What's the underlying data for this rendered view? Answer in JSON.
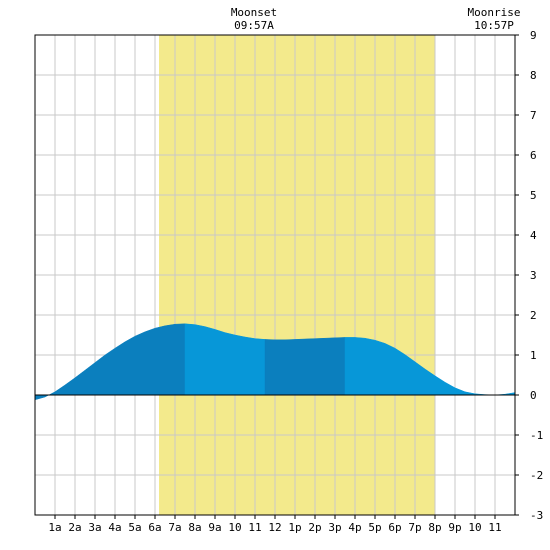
{
  "chart_data": {
    "type": "area",
    "title": "",
    "xlabel": "",
    "ylabel": "",
    "xlim": [
      0,
      24
    ],
    "ylim": [
      -3,
      9
    ],
    "y_ticks": [
      -3,
      -2,
      -1,
      0,
      1,
      2,
      3,
      4,
      5,
      6,
      7,
      8,
      9
    ],
    "x_ticks": [
      {
        "x": 1,
        "label": "1a"
      },
      {
        "x": 2,
        "label": "2a"
      },
      {
        "x": 3,
        "label": "3a"
      },
      {
        "x": 4,
        "label": "4a"
      },
      {
        "x": 5,
        "label": "5a"
      },
      {
        "x": 6,
        "label": "6a"
      },
      {
        "x": 7,
        "label": "7a"
      },
      {
        "x": 8,
        "label": "8a"
      },
      {
        "x": 9,
        "label": "9a"
      },
      {
        "x": 10,
        "label": "10"
      },
      {
        "x": 11,
        "label": "11"
      },
      {
        "x": 12,
        "label": "12"
      },
      {
        "x": 13,
        "label": "1p"
      },
      {
        "x": 14,
        "label": "2p"
      },
      {
        "x": 15,
        "label": "3p"
      },
      {
        "x": 16,
        "label": "4p"
      },
      {
        "x": 17,
        "label": "5p"
      },
      {
        "x": 18,
        "label": "6p"
      },
      {
        "x": 19,
        "label": "7p"
      },
      {
        "x": 20,
        "label": "8p"
      },
      {
        "x": 21,
        "label": "9p"
      },
      {
        "x": 22,
        "label": "10"
      },
      {
        "x": 23,
        "label": "11"
      }
    ],
    "grid": true,
    "daylight": {
      "start": 6.2,
      "end": 20.0
    },
    "annotations": [
      {
        "x": 10.95,
        "line1": "Moonset",
        "line2": "09:57A"
      },
      {
        "x": 22.95,
        "line1": "Moonrise",
        "line2": "10:57P"
      }
    ],
    "series": [
      {
        "x": [
          0,
          0.5,
          1,
          1.5,
          2,
          2.5,
          3,
          3.5,
          4,
          4.5,
          5,
          5.5,
          6,
          6.5,
          7,
          7.5,
          8,
          8.5,
          9,
          9.5,
          10,
          10.5,
          11,
          11.5,
          12,
          12.5,
          13,
          13.5,
          14,
          14.5,
          15,
          15.5,
          16,
          16.5,
          17,
          17.5,
          18,
          18.5,
          19,
          19.5,
          20,
          20.5,
          21,
          21.5,
          22,
          22.5,
          23,
          23.5,
          24
        ],
        "values": [
          -0.12,
          -0.05,
          0.08,
          0.25,
          0.43,
          0.62,
          0.81,
          1.0,
          1.17,
          1.33,
          1.47,
          1.58,
          1.67,
          1.73,
          1.77,
          1.78,
          1.76,
          1.71,
          1.64,
          1.56,
          1.5,
          1.45,
          1.41,
          1.39,
          1.38,
          1.38,
          1.39,
          1.4,
          1.41,
          1.42,
          1.43,
          1.44,
          1.44,
          1.42,
          1.37,
          1.29,
          1.17,
          1.01,
          0.83,
          0.65,
          0.48,
          0.32,
          0.18,
          0.08,
          0.03,
          0.01,
          0.0,
          0.02,
          0.06
        ]
      }
    ],
    "bands": [
      {
        "x0": 0,
        "x1": 7.5,
        "color": "#0b7fbe"
      },
      {
        "x0": 7.5,
        "x1": 11.5,
        "color": "#0797d8"
      },
      {
        "x0": 11.5,
        "x1": 15.5,
        "color": "#0b7fbe"
      },
      {
        "x0": 15.5,
        "x1": 24,
        "color": "#0797d8"
      }
    ],
    "colors": {
      "daylight": "#f3ea8c",
      "grid": "#c8c8c8",
      "zero_line": "#000000",
      "frame": "#000000"
    }
  }
}
